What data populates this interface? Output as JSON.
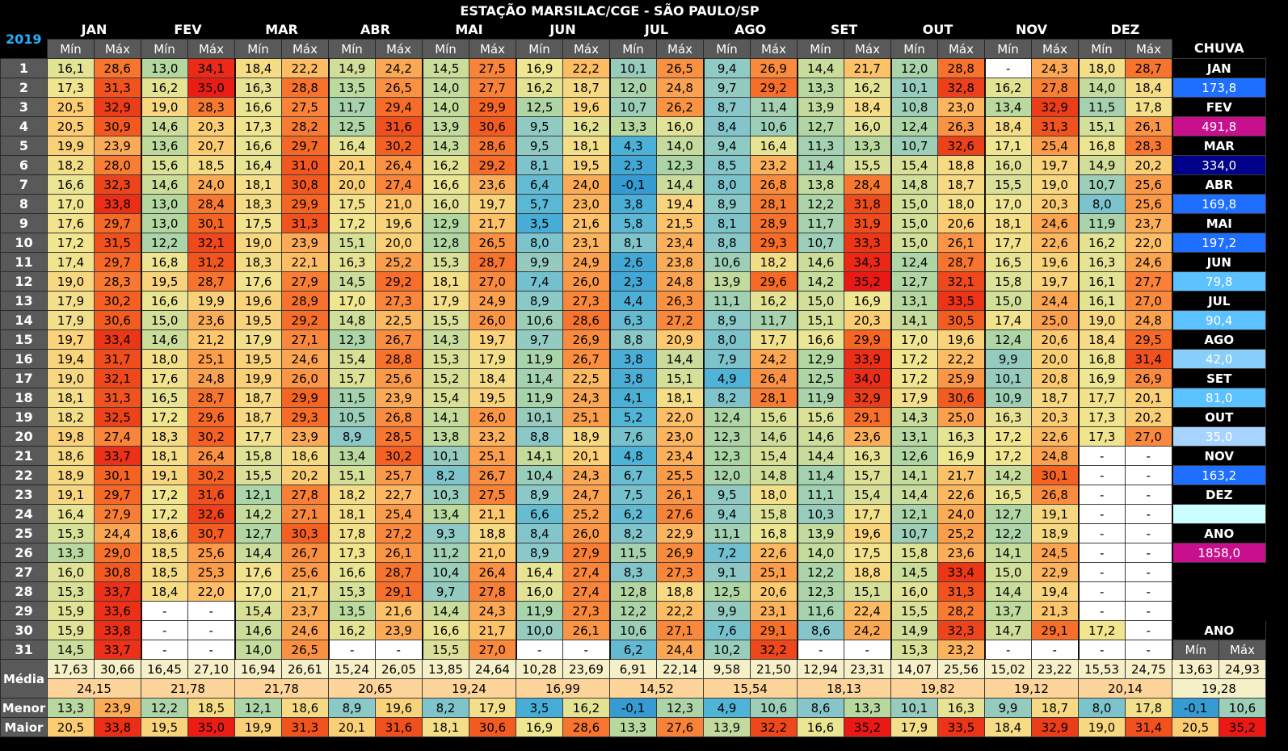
{
  "title": "ESTAÇÃO MARSILAC/CGE - SÃO PAULO/SP",
  "year": "2019",
  "months": [
    "JAN",
    "FEV",
    "MAR",
    "ABR",
    "MAI",
    "JUN",
    "JUL",
    "AGO",
    "SET",
    "OUT",
    "NOV",
    "DEZ"
  ],
  "min_label": "Mín",
  "max_label": "Máx",
  "chuva_label": "CHUVA",
  "ano_label": "ANO",
  "days": [
    [
      "16,1",
      "28,6",
      "13,0",
      "34,1",
      "18,4",
      "22,2",
      "14,9",
      "24,2",
      "14,5",
      "27,5",
      "16,9",
      "22,2",
      "10,1",
      "26,5",
      "9,4",
      "26,9",
      "14,4",
      "21,7",
      "12,0",
      "28,8",
      "-",
      "24,3",
      "18,0",
      "28,7"
    ],
    [
      "17,3",
      "31,3",
      "16,2",
      "35,0",
      "16,3",
      "28,8",
      "13,5",
      "26,5",
      "14,0",
      "27,7",
      "16,2",
      "18,7",
      "12,0",
      "24,8",
      "9,7",
      "29,2",
      "13,3",
      "16,2",
      "10,1",
      "32,8",
      "16,2",
      "27,8",
      "14,0",
      "18,4"
    ],
    [
      "20,5",
      "32,9",
      "19,0",
      "28,3",
      "16,6",
      "27,5",
      "11,7",
      "29,4",
      "14,0",
      "29,9",
      "12,5",
      "19,6",
      "10,7",
      "26,2",
      "8,7",
      "11,4",
      "13,9",
      "18,4",
      "10,8",
      "23,0",
      "13,4",
      "32,9",
      "11,5",
      "17,8"
    ],
    [
      "20,5",
      "30,9",
      "14,6",
      "20,3",
      "17,3",
      "28,2",
      "12,5",
      "31,6",
      "13,9",
      "30,6",
      "9,5",
      "16,2",
      "13,3",
      "16,0",
      "8,4",
      "10,6",
      "12,7",
      "16,0",
      "12,4",
      "26,3",
      "18,4",
      "31,3",
      "15,1",
      "26,1"
    ],
    [
      "19,9",
      "23,9",
      "13,6",
      "20,7",
      "16,6",
      "29,7",
      "16,4",
      "30,2",
      "14,3",
      "28,6",
      "9,5",
      "18,1",
      "4,3",
      "14,0",
      "9,4",
      "16,4",
      "11,3",
      "13,3",
      "10,7",
      "32,6",
      "17,1",
      "25,4",
      "16,8",
      "28,3"
    ],
    [
      "18,2",
      "28,0",
      "15,6",
      "18,5",
      "16,4",
      "31,0",
      "20,1",
      "26,4",
      "16,2",
      "29,2",
      "8,1",
      "19,5",
      "2,3",
      "12,3",
      "8,5",
      "23,2",
      "11,4",
      "15,5",
      "15,4",
      "18,8",
      "16,0",
      "19,7",
      "14,9",
      "20,2"
    ],
    [
      "16,6",
      "32,3",
      "14,6",
      "24,0",
      "18,1",
      "30,8",
      "20,0",
      "27,4",
      "16,6",
      "23,6",
      "6,4",
      "24,0",
      "-0,1",
      "14,4",
      "8,0",
      "26,8",
      "13,8",
      "28,4",
      "14,8",
      "18,7",
      "15,5",
      "19,0",
      "10,7",
      "25,6"
    ],
    [
      "17,0",
      "33,8",
      "13,0",
      "28,4",
      "18,3",
      "29,9",
      "17,5",
      "21,0",
      "16,0",
      "19,7",
      "5,7",
      "23,0",
      "3,8",
      "19,4",
      "8,9",
      "28,1",
      "12,2",
      "31,8",
      "15,0",
      "18,0",
      "17,0",
      "20,3",
      "8,0",
      "25,6"
    ],
    [
      "17,6",
      "29,7",
      "13,0",
      "30,1",
      "17,5",
      "31,3",
      "17,2",
      "19,6",
      "12,9",
      "21,7",
      "3,5",
      "21,6",
      "5,8",
      "21,5",
      "8,1",
      "28,9",
      "11,7",
      "31,9",
      "15,0",
      "20,6",
      "18,1",
      "24,6",
      "11,9",
      "23,7"
    ],
    [
      "17,2",
      "31,5",
      "12,2",
      "32,1",
      "19,0",
      "23,9",
      "15,1",
      "20,0",
      "12,8",
      "26,5",
      "8,0",
      "23,1",
      "8,1",
      "23,4",
      "8,8",
      "29,3",
      "10,7",
      "33,3",
      "15,0",
      "26,1",
      "17,7",
      "22,6",
      "16,2",
      "22,0"
    ],
    [
      "17,4",
      "29,7",
      "16,8",
      "31,2",
      "18,3",
      "22,1",
      "16,3",
      "25,2",
      "15,3",
      "28,7",
      "9,9",
      "24,9",
      "2,6",
      "23,8",
      "10,6",
      "18,2",
      "14,6",
      "34,3",
      "12,4",
      "28,7",
      "16,5",
      "19,6",
      "16,3",
      "24,6"
    ],
    [
      "19,0",
      "28,3",
      "19,5",
      "28,7",
      "17,6",
      "27,9",
      "14,5",
      "29,2",
      "18,1",
      "27,0",
      "7,4",
      "26,0",
      "2,3",
      "24,8",
      "13,9",
      "29,6",
      "14,2",
      "35,2",
      "12,7",
      "32,1",
      "15,8",
      "19,7",
      "16,1",
      "27,7"
    ],
    [
      "17,9",
      "30,2",
      "16,6",
      "19,9",
      "19,6",
      "28,9",
      "17,0",
      "27,3",
      "17,9",
      "24,9",
      "8,9",
      "27,3",
      "4,4",
      "26,3",
      "11,1",
      "16,2",
      "15,0",
      "16,9",
      "13,1",
      "33,5",
      "15,0",
      "24,4",
      "16,1",
      "27,0"
    ],
    [
      "17,9",
      "30,6",
      "15,0",
      "23,6",
      "19,5",
      "29,2",
      "14,8",
      "22,5",
      "15,5",
      "26,0",
      "10,6",
      "28,6",
      "6,3",
      "27,2",
      "8,9",
      "11,7",
      "15,1",
      "20,3",
      "14,1",
      "30,5",
      "17,4",
      "25,0",
      "19,0",
      "24,8"
    ],
    [
      "19,7",
      "33,4",
      "14,6",
      "21,2",
      "17,9",
      "27,1",
      "12,3",
      "26,7",
      "14,3",
      "19,7",
      "9,7",
      "26,9",
      "8,8",
      "20,9",
      "8,0",
      "17,7",
      "16,6",
      "29,9",
      "17,0",
      "19,6",
      "12,4",
      "20,6",
      "18,4",
      "29,5"
    ],
    [
      "19,4",
      "31,7",
      "18,0",
      "25,1",
      "19,5",
      "24,6",
      "15,4",
      "28,8",
      "15,3",
      "17,9",
      "11,9",
      "26,7",
      "3,8",
      "14,4",
      "7,9",
      "24,2",
      "12,9",
      "33,9",
      "17,2",
      "22,2",
      "9,9",
      "20,0",
      "16,8",
      "31,4"
    ],
    [
      "19,0",
      "32,1",
      "17,6",
      "24,8",
      "19,9",
      "26,0",
      "15,7",
      "25,6",
      "15,2",
      "18,4",
      "11,4",
      "22,5",
      "3,8",
      "15,1",
      "4,9",
      "26,4",
      "12,5",
      "34,0",
      "17,2",
      "25,9",
      "10,1",
      "20,8",
      "16,9",
      "26,9"
    ],
    [
      "18,1",
      "31,3",
      "16,5",
      "28,7",
      "18,7",
      "29,9",
      "11,5",
      "23,9",
      "15,4",
      "19,5",
      "11,9",
      "24,3",
      "4,1",
      "18,1",
      "8,2",
      "28,1",
      "11,9",
      "32,9",
      "17,9",
      "30,6",
      "10,9",
      "18,7",
      "17,7",
      "20,1"
    ],
    [
      "18,2",
      "32,5",
      "17,2",
      "29,6",
      "18,7",
      "29,3",
      "10,5",
      "26,8",
      "14,1",
      "26,0",
      "10,1",
      "25,1",
      "5,2",
      "22,0",
      "12,4",
      "15,6",
      "15,6",
      "29,1",
      "14,3",
      "25,0",
      "16,3",
      "20,3",
      "17,3",
      "20,2"
    ],
    [
      "19,8",
      "27,4",
      "18,3",
      "30,2",
      "17,7",
      "23,9",
      "8,9",
      "28,5",
      "13,8",
      "23,2",
      "8,8",
      "18,9",
      "7,6",
      "23,0",
      "12,3",
      "14,6",
      "14,6",
      "23,6",
      "13,1",
      "16,3",
      "17,2",
      "22,6",
      "17,3",
      "27,0"
    ],
    [
      "18,6",
      "33,7",
      "18,1",
      "26,4",
      "15,8",
      "18,6",
      "13,4",
      "30,2",
      "10,1",
      "25,1",
      "14,1",
      "20,1",
      "4,8",
      "23,4",
      "12,3",
      "15,4",
      "14,4",
      "16,3",
      "12,6",
      "16,9",
      "17,2",
      "24,8",
      "-",
      "-"
    ],
    [
      "18,9",
      "30,1",
      "19,1",
      "30,2",
      "15,5",
      "20,2",
      "15,1",
      "25,7",
      "8,2",
      "26,7",
      "10,4",
      "24,3",
      "6,7",
      "25,5",
      "12,0",
      "14,8",
      "11,4",
      "15,7",
      "14,1",
      "21,7",
      "14,2",
      "30,1",
      "-",
      "-"
    ],
    [
      "19,1",
      "29,7",
      "17,2",
      "31,6",
      "12,1",
      "27,8",
      "18,2",
      "22,7",
      "10,3",
      "27,5",
      "8,9",
      "24,7",
      "7,5",
      "26,1",
      "9,5",
      "18,0",
      "11,1",
      "15,4",
      "14,4",
      "22,6",
      "16,5",
      "26,8",
      "-",
      "-"
    ],
    [
      "16,4",
      "27,9",
      "17,2",
      "32,6",
      "14,2",
      "27,1",
      "18,1",
      "25,4",
      "13,4",
      "21,1",
      "6,6",
      "25,2",
      "6,2",
      "27,6",
      "9,4",
      "15,8",
      "10,3",
      "17,7",
      "12,1",
      "24,0",
      "12,7",
      "19,1",
      "-",
      "-"
    ],
    [
      "15,3",
      "24,4",
      "18,6",
      "30,7",
      "12,7",
      "30,3",
      "17,8",
      "27,2",
      "9,3",
      "18,8",
      "8,4",
      "26,0",
      "8,2",
      "22,9",
      "11,1",
      "16,8",
      "13,9",
      "19,6",
      "10,7",
      "25,2",
      "12,2",
      "18,9",
      "-",
      "-"
    ],
    [
      "13,3",
      "29,0",
      "18,5",
      "25,6",
      "14,4",
      "26,7",
      "17,3",
      "26,1",
      "11,2",
      "21,0",
      "8,9",
      "27,9",
      "11,5",
      "26,9",
      "7,2",
      "22,6",
      "14,0",
      "17,5",
      "15,8",
      "23,6",
      "14,1",
      "24,5",
      "-",
      "-"
    ],
    [
      "16,0",
      "30,8",
      "18,5",
      "25,3",
      "17,6",
      "25,6",
      "16,6",
      "28,7",
      "10,4",
      "26,4",
      "16,4",
      "27,4",
      "8,3",
      "27,3",
      "9,1",
      "25,1",
      "12,2",
      "18,8",
      "14,5",
      "33,4",
      "15,0",
      "22,9",
      "-",
      "-"
    ],
    [
      "15,3",
      "33,7",
      "18,4",
      "22,0",
      "17,0",
      "21,7",
      "15,3",
      "29,1",
      "9,7",
      "27,8",
      "16,0",
      "27,4",
      "12,8",
      "18,8",
      "12,5",
      "20,6",
      "12,3",
      "15,1",
      "16,0",
      "31,3",
      "14,4",
      "19,4",
      "-",
      "-"
    ],
    [
      "15,9",
      "33,6",
      "-",
      "-",
      "15,4",
      "23,7",
      "13,5",
      "21,6",
      "14,4",
      "24,3",
      "11,9",
      "27,3",
      "12,2",
      "22,2",
      "9,9",
      "23,1",
      "11,6",
      "22,4",
      "15,5",
      "28,2",
      "13,7",
      "21,3",
      "-",
      "-"
    ],
    [
      "15,9",
      "33,8",
      "-",
      "-",
      "14,6",
      "24,6",
      "16,2",
      "23,9",
      "16,6",
      "21,7",
      "10,0",
      "26,1",
      "10,6",
      "27,1",
      "7,6",
      "29,1",
      "8,6",
      "24,2",
      "14,9",
      "32,3",
      "14,7",
      "29,1",
      "17,2",
      "-"
    ],
    [
      "14,5",
      "33,7",
      "-",
      "-",
      "14,0",
      "26,5",
      "-",
      "-",
      "15,5",
      "27,0",
      "-",
      "-",
      "6,2",
      "24,4",
      "10,2",
      "32,2",
      "-",
      "-",
      "15,3",
      "23,2",
      "-",
      "-",
      "-",
      "-"
    ]
  ],
  "rain_side": [
    {
      "label": "JAN",
      "value": "173,8",
      "color": "#1e6fff"
    },
    {
      "label": "FEV",
      "value": "491,8",
      "color": "#c8108c"
    },
    {
      "label": "MAR",
      "value": "334,0",
      "color": "#00008b"
    },
    {
      "label": "ABR",
      "value": "169,8",
      "color": "#1e6fff"
    },
    {
      "label": "MAI",
      "value": "197,2",
      "color": "#1e6fff"
    },
    {
      "label": "JUN",
      "value": "79,8",
      "color": "#5cc1ff"
    },
    {
      "label": "JUL",
      "value": "90,4",
      "color": "#5cc1ff"
    },
    {
      "label": "AGO",
      "value": "42,0",
      "color": "#87cefa"
    },
    {
      "label": "SET",
      "value": "81,0",
      "color": "#5cc1ff"
    },
    {
      "label": "OUT",
      "value": "35,0",
      "color": "#a7d4ff"
    },
    {
      "label": "NOV",
      "value": "163,2",
      "color": "#1e6fff"
    },
    {
      "label": "DEZ",
      "value": "",
      "color": "#ccffff"
    }
  ],
  "rain_year": {
    "label": "ANO",
    "value": "1858,0",
    "color": "#c8108c"
  },
  "ano_label2": "ANO",
  "summary": {
    "media_label": "Média",
    "menor_label": "Menor",
    "maior_label": "Maior",
    "media": [
      "17,63",
      "30,66",
      "16,45",
      "27,10",
      "16,94",
      "26,61",
      "15,24",
      "26,05",
      "13,85",
      "24,64",
      "10,28",
      "23,69",
      "6,91",
      "22,14",
      "9,58",
      "21,50",
      "12,94",
      "23,31",
      "14,07",
      "25,56",
      "15,02",
      "23,22",
      "15,53",
      "24,75",
      "13,63",
      "24,93"
    ],
    "media_avg": [
      "24,15",
      "21,78",
      "21,78",
      "20,65",
      "19,24",
      "16,99",
      "14,52",
      "15,54",
      "18,13",
      "19,82",
      "19,12",
      "20,14",
      "19,28"
    ],
    "menor": [
      "13,3",
      "23,9",
      "12,2",
      "18,5",
      "12,1",
      "18,6",
      "8,9",
      "19,6",
      "8,2",
      "17,9",
      "3,5",
      "16,2",
      "-0,1",
      "12,3",
      "4,9",
      "10,6",
      "8,6",
      "13,3",
      "10,1",
      "16,3",
      "9,9",
      "18,7",
      "8,0",
      "17,8",
      "-0,1",
      "10,6"
    ],
    "maior": [
      "20,5",
      "33,8",
      "19,5",
      "35,0",
      "19,9",
      "31,3",
      "20,1",
      "31,6",
      "18,1",
      "30,6",
      "16,9",
      "28,6",
      "13,3",
      "27,6",
      "13,9",
      "32,2",
      "16,6",
      "35,2",
      "17,9",
      "33,5",
      "18,4",
      "32,9",
      "19,0",
      "31,4",
      "20,5",
      "35,2"
    ]
  }
}
